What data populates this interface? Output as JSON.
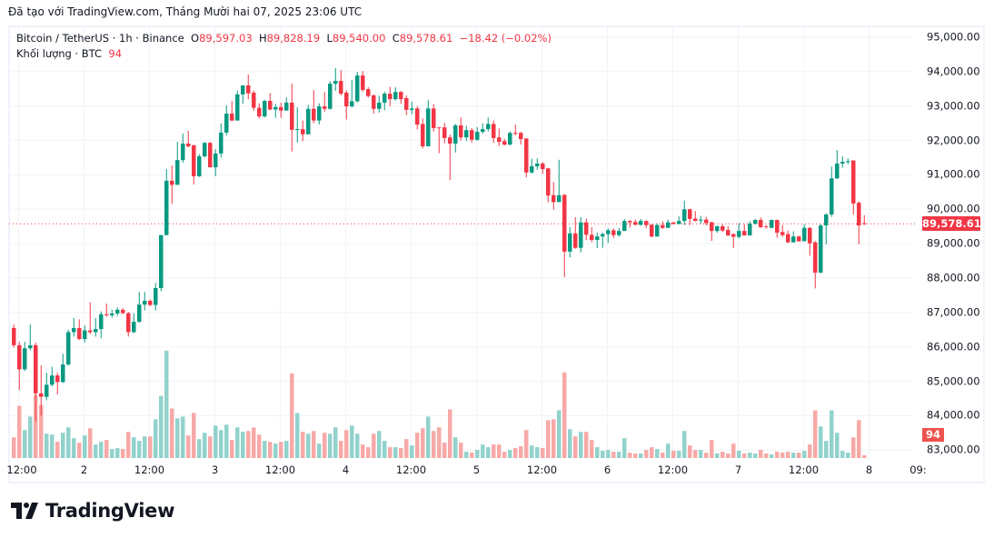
{
  "credit": "Đã tạo với TradingView.com, Tháng Mười hai 07, 2025 23:06 UTC",
  "legend": {
    "symbol": "Bitcoin / TetherUS · 1h · Binance",
    "o_label": "O",
    "o": "89,597.03",
    "h_label": "H",
    "h": "89,828.19",
    "l_label": "L",
    "l": "89,540.00",
    "c_label": "C",
    "c": "89,578.61",
    "change": "−18.42 (−0.02%)",
    "volume_label": "Khối lượng · BTC",
    "volume": "94"
  },
  "price_tag": "89,578.61",
  "volume_tag": "94",
  "brand": "TradingView",
  "colors": {
    "up": "#089981",
    "down": "#f23645",
    "up_volume": "#92d2cc",
    "down_volume": "#f7a9a7",
    "grid": "#f0f3fa"
  },
  "chart_data": {
    "type": "candlestick",
    "symbol": "BTCUSDT",
    "interval": "1h",
    "ylim": [
      82800,
      95200
    ],
    "y_ticks": [
      "95,000.00",
      "94,000.00",
      "93,000.00",
      "92,000.00",
      "91,000.00",
      "90,000.00",
      "89,000.00",
      "88,000.00",
      "87,000.00",
      "86,000.00",
      "85,000.00",
      "84,000.00",
      "83,000.00"
    ],
    "y_tick_values": [
      95000,
      94000,
      93000,
      92000,
      91000,
      90000,
      89000,
      88000,
      87000,
      86000,
      85000,
      84000,
      83000
    ],
    "x_ticks": [
      "12:00",
      "2",
      "12:00",
      "3",
      "12:00",
      "4",
      "12:00",
      "5",
      "12:00",
      "6",
      "12:00",
      "7",
      "12:00",
      "8",
      "09:"
    ],
    "x_tick_hours": [
      1,
      13,
      25,
      37,
      49,
      61,
      73,
      85,
      97,
      109,
      121,
      133,
      145,
      157,
      166
    ],
    "first_candle": "Dec 1 11:00",
    "last_price": 89578.61,
    "grid": true,
    "candles_fields": [
      "open",
      "high",
      "low",
      "close",
      "volume"
    ],
    "candles": [
      [
        86550,
        86650,
        85980,
        86050,
        690
      ],
      [
        86050,
        86150,
        84750,
        85350,
        1740
      ],
      [
        85350,
        86150,
        85300,
        85960,
        930
      ],
      [
        85960,
        86650,
        85900,
        86050,
        1380
      ],
      [
        86050,
        86120,
        83830,
        84650,
        2100
      ],
      [
        84650,
        85460,
        84000,
        84550,
        1770
      ],
      [
        84550,
        85250,
        84450,
        84900,
        810
      ],
      [
        84900,
        85420,
        84850,
        85170,
        780
      ],
      [
        85170,
        85250,
        84620,
        84980,
        540
      ],
      [
        84980,
        85800,
        84950,
        85490,
        840
      ],
      [
        85490,
        86500,
        85450,
        86430,
        1020
      ],
      [
        86430,
        86840,
        86300,
        86550,
        660
      ],
      [
        86550,
        86800,
        86200,
        86230,
        510
      ],
      [
        86230,
        86620,
        86130,
        86480,
        750
      ],
      [
        86480,
        87300,
        86380,
        86430,
        990
      ],
      [
        86430,
        86840,
        86300,
        86520,
        450
      ],
      [
        86520,
        87030,
        86250,
        86950,
        540
      ],
      [
        86950,
        87260,
        86880,
        86920,
        600
      ],
      [
        86920,
        87080,
        86850,
        86970,
        300
      ],
      [
        86970,
        87150,
        86900,
        87080,
        330
      ],
      [
        87080,
        87130,
        86950,
        86980,
        300
      ],
      [
        86980,
        87020,
        86300,
        86430,
        870
      ],
      [
        86430,
        86980,
        86400,
        86730,
        690
      ],
      [
        86730,
        87600,
        86700,
        87230,
        570
      ],
      [
        87230,
        87600,
        87060,
        87340,
        720
      ],
      [
        87340,
        87380,
        87180,
        87220,
        720
      ],
      [
        87220,
        87860,
        87060,
        87710,
        1290
      ],
      [
        87710,
        89250,
        87620,
        89250,
        2070
      ],
      [
        89250,
        91170,
        89250,
        90830,
        3570
      ],
      [
        90830,
        91270,
        90160,
        90710,
        1650
      ],
      [
        90710,
        91960,
        90710,
        91430,
        1320
      ],
      [
        91430,
        92200,
        91350,
        91910,
        1380
      ],
      [
        91910,
        92280,
        91800,
        91830,
        750
      ],
      [
        91860,
        91880,
        90720,
        90960,
        1500
      ],
      [
        90960,
        91600,
        90940,
        91540,
        630
      ],
      [
        91540,
        91960,
        91500,
        91930,
        840
      ],
      [
        91930,
        91960,
        91220,
        91220,
        720
      ],
      [
        91220,
        91750,
        90960,
        91620,
        1080
      ],
      [
        91620,
        92500,
        91500,
        92230,
        930
      ],
      [
        92230,
        93020,
        92150,
        92780,
        1110
      ],
      [
        92780,
        93150,
        92560,
        92580,
        600
      ],
      [
        92580,
        93450,
        92580,
        93340,
        1020
      ],
      [
        93340,
        93600,
        93070,
        93600,
        870
      ],
      [
        93600,
        93920,
        93200,
        93370,
        900
      ],
      [
        93390,
        93450,
        92870,
        92950,
        1020
      ],
      [
        92950,
        93080,
        92640,
        92700,
        780
      ],
      [
        92700,
        93180,
        92670,
        93150,
        570
      ],
      [
        93150,
        93380,
        92880,
        92900,
        540
      ],
      [
        92900,
        93060,
        92660,
        92970,
        480
      ],
      [
        92970,
        93100,
        92660,
        92870,
        540
      ],
      [
        92870,
        93250,
        92870,
        93100,
        570
      ],
      [
        93100,
        93650,
        91680,
        92310,
        2820
      ],
      [
        92310,
        92960,
        91940,
        92330,
        1500
      ],
      [
        92330,
        92580,
        91980,
        92180,
        870
      ],
      [
        92180,
        93030,
        92180,
        92920,
        810
      ],
      [
        92920,
        93460,
        92500,
        92580,
        900
      ],
      [
        92580,
        93080,
        92460,
        92990,
        480
      ],
      [
        92990,
        93410,
        92840,
        92920,
        840
      ],
      [
        92920,
        93720,
        92900,
        93650,
        810
      ],
      [
        93650,
        94100,
        93440,
        93730,
        1020
      ],
      [
        93730,
        94050,
        93310,
        93360,
        570
      ],
      [
        93390,
        93460,
        92610,
        92990,
        930
      ],
      [
        92990,
        93760,
        92960,
        93140,
        1080
      ],
      [
        93140,
        93990,
        93100,
        93890,
        810
      ],
      [
        93890,
        94020,
        93420,
        93470,
        450
      ],
      [
        93490,
        93550,
        93250,
        93290,
        360
      ],
      [
        93310,
        93340,
        92780,
        92920,
        810
      ],
      [
        92920,
        93300,
        92810,
        93100,
        900
      ],
      [
        93100,
        93420,
        92880,
        93360,
        570
      ],
      [
        93360,
        93560,
        93000,
        93200,
        360
      ],
      [
        93200,
        93550,
        93160,
        93410,
        360
      ],
      [
        93410,
        93440,
        93070,
        93200,
        330
      ],
      [
        93230,
        93310,
        92740,
        92890,
        630
      ],
      [
        92890,
        93120,
        92760,
        92930,
        420
      ],
      [
        92930,
        93000,
        92320,
        92460,
        840
      ],
      [
        92480,
        92640,
        91770,
        91830,
        990
      ],
      [
        91830,
        93170,
        91830,
        92930,
        1380
      ],
      [
        92930,
        93060,
        92260,
        92360,
        900
      ],
      [
        92380,
        92380,
        91630,
        92360,
        1020
      ],
      [
        92380,
        92510,
        91920,
        92070,
        510
      ],
      [
        92090,
        92170,
        90850,
        91910,
        1620
      ],
      [
        91910,
        92480,
        91650,
        92440,
        690
      ],
      [
        92440,
        92670,
        92000,
        92090,
        510
      ],
      [
        92090,
        92430,
        91980,
        92300,
        210
      ],
      [
        92300,
        92360,
        91940,
        92020,
        180
      ],
      [
        92020,
        92390,
        91990,
        92250,
        270
      ],
      [
        92250,
        92500,
        92200,
        92330,
        450
      ],
      [
        92330,
        92670,
        92260,
        92480,
        360
      ],
      [
        92480,
        92580,
        91930,
        92070,
        450
      ],
      [
        92090,
        92350,
        91840,
        91960,
        450
      ],
      [
        91980,
        92050,
        91860,
        91880,
        210
      ],
      [
        91880,
        92260,
        91860,
        92220,
        270
      ],
      [
        92220,
        92460,
        92150,
        92200,
        330
      ],
      [
        92220,
        92250,
        91880,
        92040,
        390
      ],
      [
        92060,
        92060,
        90930,
        91070,
        930
      ],
      [
        91070,
        91470,
        91040,
        91250,
        420
      ],
      [
        91250,
        91480,
        91150,
        91330,
        360
      ],
      [
        91330,
        91370,
        91030,
        91170,
        330
      ],
      [
        91190,
        91200,
        90200,
        90400,
        1260
      ],
      [
        90410,
        90790,
        89990,
        90210,
        1290
      ],
      [
        90210,
        91440,
        90210,
        90410,
        1590
      ],
      [
        90420,
        90440,
        88030,
        88770,
        2850
      ],
      [
        88770,
        89480,
        88600,
        89300,
        960
      ],
      [
        89300,
        89770,
        88850,
        88880,
        720
      ],
      [
        88880,
        89770,
        88750,
        89620,
        870
      ],
      [
        89620,
        89730,
        89100,
        89260,
        870
      ],
      [
        89260,
        89480,
        89040,
        89110,
        600
      ],
      [
        89110,
        89320,
        88870,
        89210,
        360
      ],
      [
        89210,
        89330,
        88880,
        89280,
        240
      ],
      [
        89280,
        89440,
        89020,
        89390,
        270
      ],
      [
        89390,
        89450,
        89160,
        89250,
        210
      ],
      [
        89250,
        89450,
        89200,
        89370,
        210
      ],
      [
        89370,
        89720,
        89370,
        89660,
        660
      ],
      [
        89660,
        89690,
        89470,
        89620,
        180
      ],
      [
        89630,
        89700,
        89530,
        89550,
        150
      ],
      [
        89550,
        89720,
        89520,
        89660,
        150
      ],
      [
        89660,
        89680,
        89450,
        89540,
        270
      ],
      [
        89550,
        89570,
        89180,
        89210,
        360
      ],
      [
        89210,
        89580,
        89200,
        89540,
        300
      ],
      [
        89540,
        89650,
        89430,
        89460,
        180
      ],
      [
        89460,
        89700,
        89460,
        89620,
        480
      ],
      [
        89620,
        89630,
        89570,
        89570,
        240
      ],
      [
        89570,
        89790,
        89570,
        89660,
        240
      ],
      [
        89660,
        90250,
        89540,
        90000,
        900
      ],
      [
        90000,
        90020,
        89540,
        89720,
        420
      ],
      [
        89730,
        89950,
        89650,
        89660,
        270
      ],
      [
        89680,
        89810,
        89580,
        89700,
        270
      ],
      [
        89700,
        89780,
        89530,
        89600,
        180
      ],
      [
        89620,
        89640,
        89080,
        89370,
        600
      ],
      [
        89370,
        89520,
        89320,
        89510,
        150
      ],
      [
        89510,
        89560,
        89340,
        89380,
        210
      ],
      [
        89400,
        89510,
        89220,
        89240,
        150
      ],
      [
        89280,
        89300,
        88870,
        89200,
        480
      ],
      [
        89200,
        89600,
        89150,
        89370,
        240
      ],
      [
        89370,
        89570,
        89240,
        89240,
        150
      ],
      [
        89240,
        89650,
        89240,
        89580,
        180
      ],
      [
        89580,
        89720,
        89560,
        89690,
        150
      ],
      [
        89690,
        89760,
        89460,
        89480,
        270
      ],
      [
        89510,
        89530,
        89440,
        89490,
        150
      ],
      [
        89460,
        89700,
        89460,
        89690,
        120
      ],
      [
        89690,
        89700,
        89170,
        89320,
        210
      ],
      [
        89340,
        89540,
        89200,
        89250,
        180
      ],
      [
        89280,
        89380,
        89020,
        89040,
        210
      ],
      [
        89040,
        89360,
        89040,
        89210,
        180
      ],
      [
        89210,
        89230,
        89060,
        89070,
        180
      ],
      [
        89070,
        89560,
        89070,
        89460,
        240
      ],
      [
        89460,
        89480,
        88650,
        89010,
        450
      ],
      [
        89040,
        89080,
        87700,
        88160,
        1590
      ],
      [
        88160,
        89570,
        88140,
        89530,
        1050
      ],
      [
        89530,
        89880,
        88980,
        89850,
        570
      ],
      [
        89850,
        91240,
        89780,
        90900,
        1590
      ],
      [
        90900,
        91720,
        90880,
        91330,
        840
      ],
      [
        91330,
        91540,
        91210,
        91380,
        240
      ],
      [
        91390,
        91480,
        91310,
        91400,
        180
      ],
      [
        91420,
        91420,
        89850,
        90170,
        690
      ],
      [
        90190,
        90230,
        88980,
        89530,
        1260
      ],
      [
        89597.03,
        89828.19,
        89540,
        89578.61,
        94
      ]
    ]
  }
}
